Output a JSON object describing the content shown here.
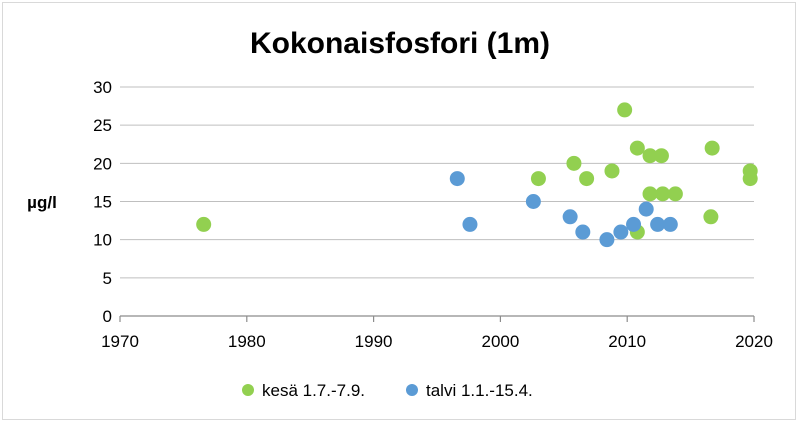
{
  "chart_data": {
    "type": "scatter",
    "title": "Kokonaisfosfori (1m)",
    "xlabel": "",
    "ylabel": "µg/l",
    "xlim": [
      1970,
      2020
    ],
    "ylim": [
      0,
      30
    ],
    "x_ticks": [
      1970,
      1980,
      1990,
      2000,
      2010,
      2020
    ],
    "y_ticks": [
      0,
      5,
      10,
      15,
      20,
      25,
      30
    ],
    "grid": "horizontal",
    "legend_position": "bottom",
    "series": [
      {
        "name": "kesä 1.7.-7.9.",
        "color": "#92d050",
        "points": [
          {
            "x": 1976.6,
            "y": 12
          },
          {
            "x": 2003.0,
            "y": 18
          },
          {
            "x": 2005.8,
            "y": 20
          },
          {
            "x": 2006.8,
            "y": 18
          },
          {
            "x": 2008.8,
            "y": 19
          },
          {
            "x": 2009.8,
            "y": 27
          },
          {
            "x": 2010.8,
            "y": 22
          },
          {
            "x": 2010.8,
            "y": 11
          },
          {
            "x": 2011.8,
            "y": 16
          },
          {
            "x": 2011.8,
            "y": 21
          },
          {
            "x": 2012.7,
            "y": 21
          },
          {
            "x": 2012.8,
            "y": 16
          },
          {
            "x": 2013.8,
            "y": 16
          },
          {
            "x": 2016.6,
            "y": 13
          },
          {
            "x": 2016.7,
            "y": 22
          },
          {
            "x": 2019.7,
            "y": 19
          },
          {
            "x": 2019.7,
            "y": 18
          }
        ]
      },
      {
        "name": "talvi 1.1.-15.4.",
        "color": "#5b9bd5",
        "points": [
          {
            "x": 1996.6,
            "y": 18
          },
          {
            "x": 1997.6,
            "y": 12
          },
          {
            "x": 2002.6,
            "y": 15
          },
          {
            "x": 2005.5,
            "y": 13
          },
          {
            "x": 2006.5,
            "y": 11
          },
          {
            "x": 2008.4,
            "y": 10
          },
          {
            "x": 2009.5,
            "y": 11
          },
          {
            "x": 2010.5,
            "y": 12
          },
          {
            "x": 2011.5,
            "y": 14
          },
          {
            "x": 2012.4,
            "y": 12
          },
          {
            "x": 2013.4,
            "y": 12
          }
        ]
      }
    ]
  }
}
